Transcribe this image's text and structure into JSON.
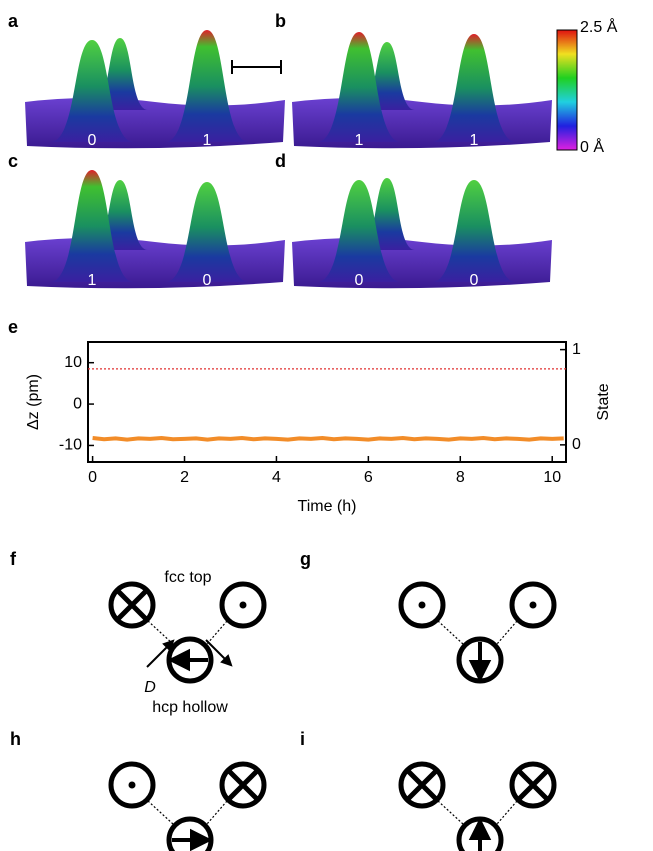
{
  "panels": [
    {
      "label": "a",
      "states": [
        0,
        1
      ]
    },
    {
      "label": "b",
      "states": [
        1,
        1
      ]
    },
    {
      "label": "c",
      "states": [
        1,
        0
      ]
    },
    {
      "label": "d",
      "states": [
        0,
        0
      ]
    }
  ],
  "colorbar": {
    "max_label": "2.5 Å",
    "min_label": "0 Å"
  },
  "chart_data": {
    "type": "line",
    "label": "e",
    "x_label": "Time (h)",
    "y_label": "Δz (pm)",
    "y2_label": "State",
    "xlim": [
      -0.1,
      10.3
    ],
    "xticks": [
      0,
      2,
      4,
      6,
      8,
      10
    ],
    "ylim": [
      -14,
      15
    ],
    "yticks": [
      -10,
      0,
      10
    ],
    "y2lim": [
      -0.18,
      1.08
    ],
    "y2ticks": [
      0,
      1
    ],
    "series": [
      {
        "color": "#f28c28",
        "x": [
          0,
          0.25,
          0.5,
          0.75,
          1,
          1.25,
          1.5,
          1.75,
          2,
          2.25,
          2.5,
          2.75,
          3,
          3.25,
          3.5,
          3.75,
          4,
          4.25,
          4.5,
          4.75,
          5,
          5.25,
          5.5,
          5.75,
          6,
          6.25,
          6.5,
          6.75,
          7,
          7.25,
          7.5,
          7.75,
          8,
          8.25,
          8.5,
          8.75,
          9,
          9.25,
          9.5,
          9.75,
          10,
          10.25
        ],
        "values": [
          -8.2,
          -8.5,
          -8.3,
          -8.6,
          -8.3,
          -8.4,
          -8.2,
          -8.5,
          -8.4,
          -8.3,
          -8.6,
          -8.3,
          -8.4,
          -8.2,
          -8.5,
          -8.3,
          -8.4,
          -8.6,
          -8.3,
          -8.4,
          -8.2,
          -8.5,
          -8.3,
          -8.4,
          -8.6,
          -8.3,
          -8.4,
          -8.2,
          -8.5,
          -8.3,
          -8.4,
          -8.6,
          -8.3,
          -8.4,
          -8.2,
          -8.5,
          -8.3,
          -8.4,
          -8.6,
          -8.3,
          -8.4,
          -8.3
        ]
      },
      {
        "color": "#e03030",
        "dotted": true,
        "x": [
          -0.1,
          10.3
        ],
        "values": [
          8.5,
          8.5
        ]
      }
    ]
  },
  "diagrams": {
    "panels": [
      {
        "label": "f"
      },
      {
        "label": "g"
      },
      {
        "label": "h"
      },
      {
        "label": "i"
      }
    ],
    "site_top": "fcc top",
    "site_hollow": "hcp hollow",
    "vector_label": "D"
  }
}
